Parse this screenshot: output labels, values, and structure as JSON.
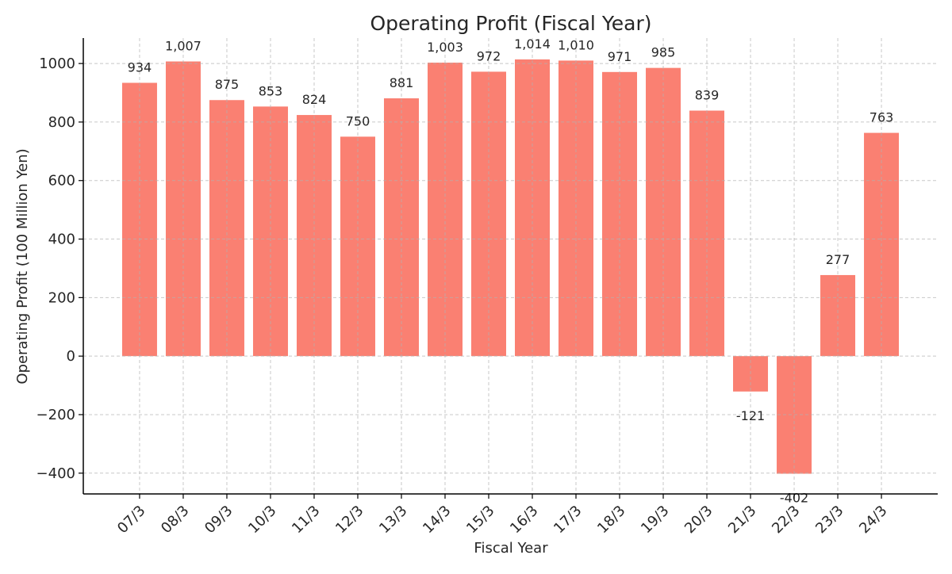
{
  "chart_data": {
    "type": "bar",
    "title": "Operating Profit (Fiscal Year)",
    "xlabel": "Fiscal Year",
    "ylabel": "Operating Profit (100 Million Yen)",
    "categories": [
      "07/3",
      "08/3",
      "09/3",
      "10/3",
      "11/3",
      "12/3",
      "13/3",
      "14/3",
      "15/3",
      "16/3",
      "17/3",
      "18/3",
      "19/3",
      "20/3",
      "21/3",
      "22/3",
      "23/3",
      "24/3"
    ],
    "values": [
      934,
      1007,
      875,
      853,
      824,
      750,
      881,
      1003,
      972,
      1014,
      1010,
      971,
      985,
      839,
      -121,
      -402,
      277,
      763
    ],
    "data_labels": [
      "934",
      "1,007",
      "875",
      "853",
      "824",
      "750",
      "881",
      "1,003",
      "972",
      "1,014",
      "1,010",
      "971",
      "985",
      "839",
      "-121",
      "-402",
      "277",
      "763"
    ],
    "ylim": [
      -471,
      1087
    ],
    "yticks": [
      -400,
      -200,
      0,
      200,
      400,
      600,
      800,
      1000
    ],
    "ytick_labels": [
      "−400",
      "−200",
      "0",
      "200",
      "400",
      "600",
      "800",
      "1000"
    ],
    "grid": true,
    "bar_color": "#FA8072"
  }
}
